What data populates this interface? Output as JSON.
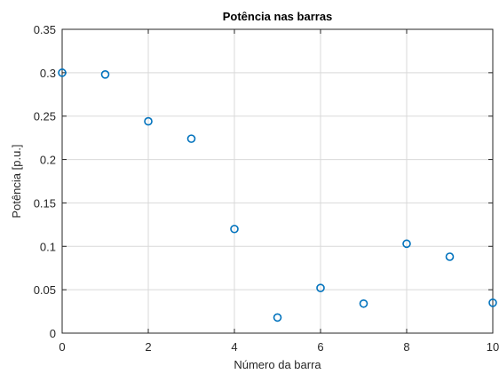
{
  "chart_data": {
    "type": "scatter",
    "title": "Potência nas barras",
    "xlabel": "Número da barra",
    "ylabel": "Potência [p.u.]",
    "xlim": [
      0,
      10
    ],
    "ylim": [
      0,
      0.35
    ],
    "xticks": [
      0,
      2,
      4,
      6,
      8,
      10
    ],
    "xtick_labels": [
      "0",
      "2",
      "4",
      "6",
      "8",
      "10"
    ],
    "yticks": [
      0,
      0.05,
      0.1,
      0.15,
      0.2,
      0.25,
      0.3,
      0.35
    ],
    "ytick_labels": [
      "0",
      "0.05",
      "0.1",
      "0.15",
      "0.2",
      "0.25",
      "0.3",
      "0.35"
    ],
    "grid": true,
    "legend": null,
    "marker": "open-circle",
    "marker_color": "#0072bd",
    "series": [
      {
        "x": [
          0,
          1,
          2,
          3,
          4,
          5,
          6,
          7,
          8,
          9,
          10
        ],
        "y": [
          0.3,
          0.298,
          0.244,
          0.224,
          0.12,
          0.018,
          0.052,
          0.034,
          0.103,
          0.088,
          0.035
        ]
      }
    ]
  }
}
